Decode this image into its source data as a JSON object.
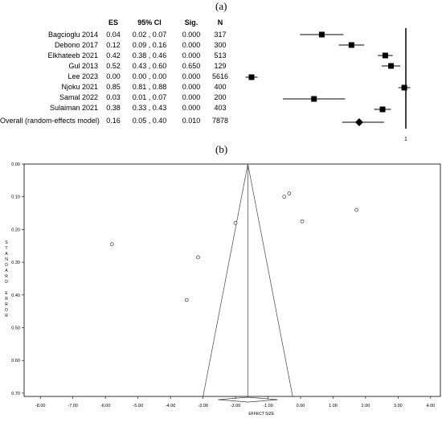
{
  "panel_labels": {
    "a": "(a)",
    "b": "(b)"
  },
  "forest": {
    "headers": {
      "es": "ES",
      "ci": "95% CI",
      "sig": "Sig.",
      "n": "N"
    },
    "x_tick_label": "1",
    "rows": [
      {
        "study": "Bagcioglu 2014",
        "es": "0.04",
        "ci": "0.02 , 0.07",
        "sig": "0.000",
        "n": "317"
      },
      {
        "study": "Debono 2017",
        "es": "0.12",
        "ci": "0.09 , 0.16",
        "sig": "0.000",
        "n": "300"
      },
      {
        "study": "Elkhateeb 2021",
        "es": "0.42",
        "ci": "0.38 , 0.46",
        "sig": "0.000",
        "n": "513"
      },
      {
        "study": "Gul 2013",
        "es": "0.52",
        "ci": "0.43 , 0.60",
        "sig": "0.650",
        "n": "129"
      },
      {
        "study": "Lee 2023",
        "es": "0.00",
        "ci": "0.00 , 0.00",
        "sig": "0.000",
        "n": "5616"
      },
      {
        "study": "Njoku 2021",
        "es": "0.85",
        "ci": "0.81 , 0.88",
        "sig": "0.000",
        "n": "400"
      },
      {
        "study": "Samal 2022",
        "es": "0.03",
        "ci": "0.01 , 0.07",
        "sig": "0.000",
        "n": "200"
      },
      {
        "study": "Sulaiman 2021",
        "es": "0.38",
        "ci": "0.33 , 0.43",
        "sig": "0.000",
        "n": "403"
      },
      {
        "study": "Overall (random-effects model)",
        "es": "0.16",
        "ci": "0.05 , 0.40",
        "sig": "0.010",
        "n": "7878"
      }
    ]
  },
  "chart_data": [
    {
      "type": "forest",
      "x_tick_labels": [
        "1"
      ],
      "series": [
        {
          "values": [
            {
              "study": "Bagcioglu 2014",
              "es": 0.04,
              "lo": 0.02,
              "hi": 0.07
            },
            {
              "study": "Debono 2017",
              "es": 0.12,
              "lo": 0.09,
              "hi": 0.16
            },
            {
              "study": "Elkhateeb 2021",
              "es": 0.42,
              "lo": 0.38,
              "hi": 0.46
            },
            {
              "study": "Gul 2013",
              "es": 0.52,
              "lo": 0.43,
              "hi": 0.6
            },
            {
              "study": "Lee 2023",
              "es": 0.0,
              "lo": 0.0,
              "hi": 0.0
            },
            {
              "study": "Njoku 2021",
              "es": 0.85,
              "lo": 0.81,
              "hi": 0.88
            },
            {
              "study": "Samal 2022",
              "es": 0.03,
              "lo": 0.01,
              "hi": 0.07
            },
            {
              "study": "Sulaiman 2021",
              "es": 0.38,
              "lo": 0.33,
              "hi": 0.43
            }
          ]
        },
        {
          "name": "Overall (random-effects model)",
          "es": 0.16,
          "lo": 0.05,
          "hi": 0.4
        }
      ]
    },
    {
      "type": "scatter",
      "xlabel": "EFFECT SIZE",
      "ylabel": "STANDARD ERROR",
      "xlim": [
        -8.5,
        4.3
      ],
      "ylim": [
        0.0,
        0.71
      ],
      "y_reversed": true,
      "x_ticks": [
        -8,
        -7,
        -6,
        -5,
        -4,
        -3,
        -2,
        -1,
        0,
        1,
        2,
        3,
        4
      ],
      "y_ticks": [
        0,
        0.1,
        0.2,
        0.3,
        0.4,
        0.5,
        0.6,
        0.7
      ],
      "x_tick_labels": [
        "-8.00",
        "-7.00",
        "-6.00",
        "-5.00",
        "-4.00",
        "-3.00",
        "-2.00",
        "-1.00",
        "0.00",
        "1.00",
        "2.00",
        "3.00",
        "4.00"
      ],
      "y_tick_labels": [
        "0.00",
        "0.10",
        "0.20",
        "0.30",
        "0.40",
        "0.50",
        "0.60",
        "0.70"
      ],
      "funnel_center": -1.62,
      "points": [
        {
          "x": -5.8,
          "y": 0.245
        },
        {
          "x": -3.5,
          "y": 0.415
        },
        {
          "x": -3.15,
          "y": 0.285
        },
        {
          "x": -2.0,
          "y": 0.18
        },
        {
          "x": -0.5,
          "y": 0.1
        },
        {
          "x": -0.35,
          "y": 0.09
        },
        {
          "x": 0.05,
          "y": 0.175
        },
        {
          "x": 1.72,
          "y": 0.14
        }
      ]
    }
  ]
}
